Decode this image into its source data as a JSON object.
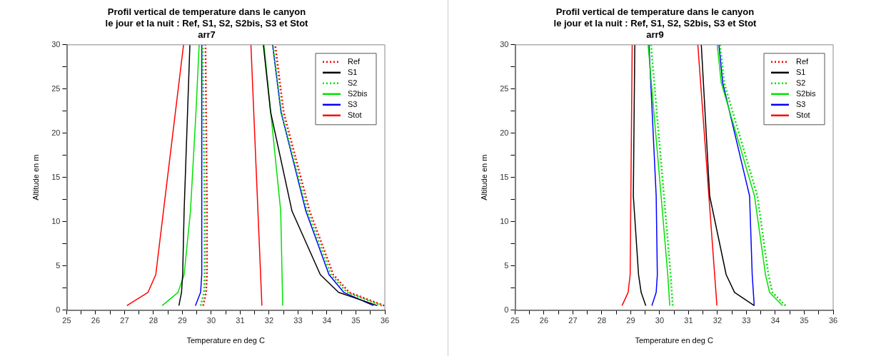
{
  "chart_data": [
    {
      "type": "line",
      "title": "Profil vertical de temperature dans le canyon\nle jour et la nuit : Ref, S1, S2, S2bis, S3 et Stot",
      "subtitle": "arr7",
      "xlabel": "Temperature en deg C",
      "ylabel": "Altitude en m",
      "xlim": [
        25,
        36
      ],
      "ylim": [
        0,
        30
      ],
      "xticks": [
        25,
        {
          "value": 25.5,
          "label": null
        },
        26,
        {
          "value": 26.5,
          "label": null
        },
        27,
        {
          "value": 27.5,
          "label": null
        },
        28,
        {
          "value": 28.5,
          "label": null
        },
        29,
        {
          "value": 29.5,
          "label": null
        },
        30,
        {
          "value": 30.5,
          "label": null
        },
        31,
        {
          "value": 31.5,
          "label": null
        },
        32,
        {
          "value": 32.5,
          "label": null
        },
        33,
        {
          "value": 33.5,
          "label": null
        },
        34,
        {
          "value": 34.5,
          "label": null
        },
        35,
        {
          "value": 35.5,
          "label": null
        },
        36
      ],
      "yticks": [
        0,
        {
          "value": 2.5,
          "label": null
        },
        5,
        {
          "value": 7.5,
          "label": null
        },
        10,
        {
          "value": 12.5,
          "label": null
        },
        15,
        {
          "value": 17.5,
          "label": null
        },
        20,
        {
          "value": 22.5,
          "label": null
        },
        25,
        {
          "value": 27.5,
          "label": null
        },
        30
      ],
      "legend": "top right",
      "marker": "none",
      "series": [
        {
          "name": "Ref",
          "color": "#ff0000",
          "line_style": "dotted",
          "x": [
            29.72,
            29.82,
            29.85,
            29.85,
            29.8
          ],
          "values": [
            0.5,
            2,
            4,
            11.2,
            30
          ]
        },
        {
          "name": "S1",
          "color": "#000000",
          "x": [
            28.88,
            28.97,
            29.01,
            29.06,
            29.26
          ],
          "values": [
            0.5,
            2,
            4,
            11.2,
            30
          ]
        },
        {
          "name": "S2",
          "color": "#00e000",
          "line_style": "dotted",
          "x": [
            29.63,
            29.75,
            29.77,
            29.77,
            29.7
          ],
          "values": [
            0.5,
            2,
            4,
            11.2,
            30
          ]
        },
        {
          "name": "S2bis",
          "color": "#00e000",
          "x": [
            28.3,
            28.85,
            29.06,
            29.28,
            29.47,
            29.58
          ],
          "values": [
            0.5,
            2,
            4,
            11.2,
            22.4,
            30
          ]
        },
        {
          "name": "S3",
          "color": "#0000ff",
          "x": [
            29.45,
            29.63,
            29.67,
            29.67
          ],
          "values": [
            0.5,
            2,
            4,
            30
          ]
        },
        {
          "name": "Stot",
          "color": "#ff0000",
          "x": [
            27.08,
            27.81,
            28.08,
            29.04
          ],
          "values": [
            0.5,
            2,
            4,
            30
          ]
        },
        {
          "color": "#ff0000",
          "line_style": "dotted",
          "x": [
            35.98,
            34.77,
            34.22,
            33.4,
            32.5,
            32.21
          ],
          "values": [
            0.5,
            2,
            4,
            11.2,
            22.4,
            30
          ]
        },
        {
          "color": "#000000",
          "x": [
            35.74,
            34.4,
            33.77,
            32.79,
            32.05,
            31.8
          ],
          "values": [
            0.5,
            2,
            4,
            11.2,
            22.4,
            30
          ]
        },
        {
          "color": "#00e000",
          "line_style": "dotted",
          "x": [
            35.9,
            34.69,
            34.14,
            33.32,
            32.42,
            32.13
          ],
          "values": [
            0.5,
            2,
            4,
            11.2,
            22.4,
            30
          ]
        },
        {
          "color": "#00e000",
          "x": [
            32.47,
            32.4,
            31.82
          ],
          "values": [
            0.5,
            11.2,
            30
          ]
        },
        {
          "color": "#0000ff",
          "x": [
            35.61,
            34.58,
            34.07,
            33.27,
            32.41,
            32.12
          ],
          "values": [
            0.5,
            2,
            4,
            11.2,
            22.4,
            30
          ]
        },
        {
          "color": "#ff0000",
          "x": [
            31.75,
            31.37
          ],
          "values": [
            0.5,
            30
          ]
        }
      ]
    },
    {
      "type": "line",
      "title": "Profil vertical de temperature dans le canyon\nle jour et la nuit : Ref, S1, S2, S2bis, S3 et Stot",
      "subtitle": "arr9",
      "xlabel": "Temperature en deg C",
      "ylabel": "Altitude en m",
      "xlim": [
        25,
        36
      ],
      "ylim": [
        0,
        30
      ],
      "xticks": [
        25,
        {
          "value": 25.5,
          "label": null
        },
        26,
        {
          "value": 26.5,
          "label": null
        },
        27,
        {
          "value": 27.5,
          "label": null
        },
        28,
        {
          "value": 28.5,
          "label": null
        },
        29,
        {
          "value": 29.5,
          "label": null
        },
        30,
        {
          "value": 30.5,
          "label": null
        },
        31,
        {
          "value": 31.5,
          "label": null
        },
        32,
        {
          "value": 32.5,
          "label": null
        },
        33,
        {
          "value": 33.5,
          "label": null
        },
        34,
        {
          "value": 34.5,
          "label": null
        },
        35,
        {
          "value": 35.5,
          "label": null
        },
        36
      ],
      "yticks": [
        0,
        {
          "value": 2.5,
          "label": null
        },
        5,
        {
          "value": 7.5,
          "label": null
        },
        10,
        {
          "value": 12.5,
          "label": null
        },
        15,
        {
          "value": 17.5,
          "label": null
        },
        20,
        {
          "value": 22.5,
          "label": null
        },
        25,
        {
          "value": 27.5,
          "label": null
        },
        30
      ],
      "legend": "top right",
      "marker": "none",
      "series": [
        {
          "name": "Ref",
          "color": "#ff0000",
          "line_style": "dotted",
          "x": [
            null,
            null,
            null,
            null
          ],
          "values": [
            null,
            null,
            null,
            null
          ]
        },
        {
          "name": "S1",
          "color": "#000000",
          "x": [
            29.52,
            29.36,
            29.27,
            29.09,
            29.14
          ],
          "values": [
            0.5,
            2,
            4,
            12.9,
            30
          ]
        },
        {
          "name": "S2",
          "color": "#00e000",
          "line_style": "dotted",
          "x": [
            30.45,
            30.38,
            30.15,
            29.7
          ],
          "values": [
            0.5,
            4,
            12.9,
            30
          ]
        },
        {
          "name": "S2bis",
          "color": "#00e000",
          "x": [
            30.35,
            30.28,
            30.05,
            29.6
          ],
          "values": [
            0.5,
            4,
            12.9,
            30
          ]
        },
        {
          "name": "S3",
          "color": "#0000ff",
          "x": [
            29.73,
            29.88,
            29.92,
            29.88,
            29.63
          ],
          "values": [
            0.5,
            2,
            4,
            12.9,
            30
          ]
        },
        {
          "name": "Stot",
          "color": "#ff0000",
          "x": [
            28.7,
            28.91,
            28.98,
            29.05
          ],
          "values": [
            0.5,
            2,
            4,
            30
          ]
        },
        {
          "color": "#000000",
          "x": [
            33.27,
            32.59,
            32.3,
            31.73,
            31.44
          ],
          "values": [
            0.5,
            2,
            4,
            12.9,
            30
          ]
        },
        {
          "color": "#00e000",
          "line_style": "dotted",
          "x": [
            34.35,
            33.9,
            33.76,
            33.38,
            32.23,
            32.09
          ],
          "values": [
            0.5,
            2,
            4,
            12.9,
            25.7,
            30
          ]
        },
        {
          "color": "#00e000",
          "x": [
            34.25,
            33.8,
            33.66,
            33.28,
            32.13,
            31.99
          ],
          "values": [
            0.5,
            2,
            4,
            12.9,
            25.7,
            30
          ]
        },
        {
          "color": "#0000ff",
          "x": [
            33.27,
            33.2,
            33.11,
            32.18,
            32.05
          ],
          "values": [
            0.5,
            4,
            12.9,
            25.7,
            30
          ]
        },
        {
          "color": "#ff0000",
          "x": [
            31.98,
            31.32
          ],
          "values": [
            0.5,
            30
          ]
        }
      ]
    }
  ]
}
